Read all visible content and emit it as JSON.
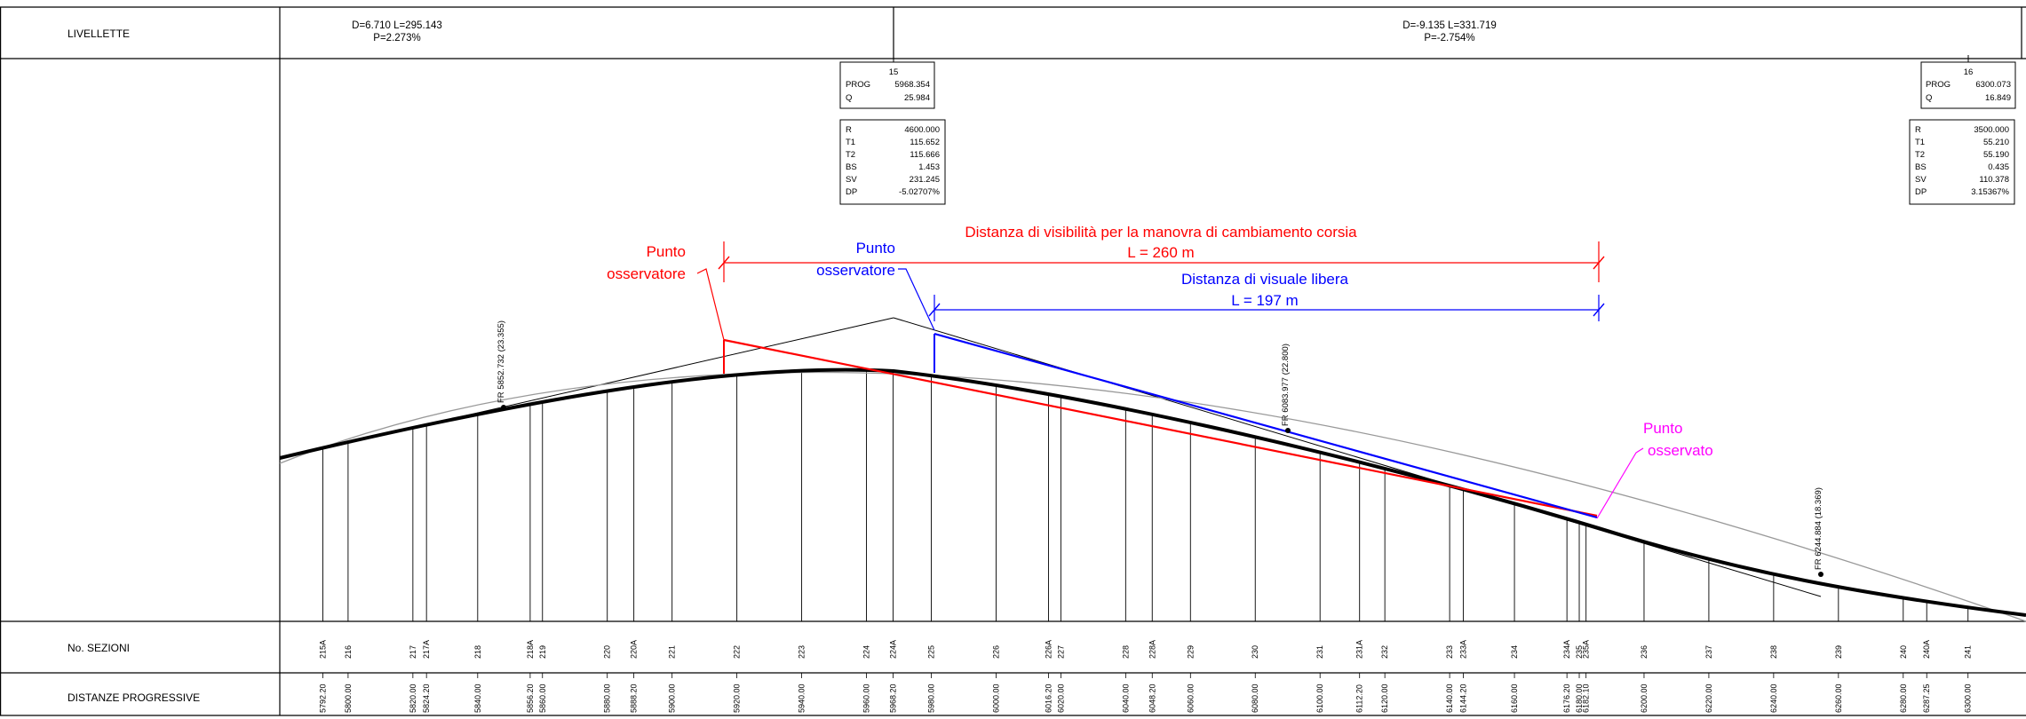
{
  "rows": {
    "livellette": "LIVELLETTE",
    "sezioni": "No. SEZIONI",
    "distanze": "DISTANZE PROGRESSIVE"
  },
  "grades": [
    {
      "line1": "D=6.710 L=295.143",
      "line2": "P=2.273%"
    },
    {
      "line1": "D=-9.135 L=331.719",
      "line2": "P=-2.754%"
    }
  ],
  "vertices": [
    {
      "num": "15",
      "prog_label": "PROG",
      "prog": "5968.354",
      "q_label": "Q",
      "q": "25.984",
      "params": [
        {
          "k": "R",
          "v": "4600.000"
        },
        {
          "k": "T1",
          "v": "115.652"
        },
        {
          "k": "T2",
          "v": "115.666"
        },
        {
          "k": "BS",
          "v": "1.453"
        },
        {
          "k": "SV",
          "v": "231.245"
        },
        {
          "k": "DP",
          "v": "-5.02707%"
        }
      ]
    },
    {
      "num": "16",
      "prog_label": "PROG",
      "prog": "6300.073",
      "q_label": "Q",
      "q": "16.849",
      "params": [
        {
          "k": "R",
          "v": "3500.000"
        },
        {
          "k": "T1",
          "v": "55.210"
        },
        {
          "k": "T2",
          "v": "55.190"
        },
        {
          "k": "BS",
          "v": "0.435"
        },
        {
          "k": "SV",
          "v": "110.378"
        },
        {
          "k": "DP",
          "v": "3.15367%"
        }
      ]
    }
  ],
  "annotations": {
    "red_observer": [
      "Punto",
      "osservatore"
    ],
    "blue_observer": [
      "Punto",
      "osservatore"
    ],
    "target": [
      "Punto",
      "osservato"
    ],
    "sight_distance_title": "Distanza di visibilità per la manovra di cambiamento corsia",
    "sight_distance_value": "L = 260 m",
    "free_view_title": "Distanza di visuale libera",
    "free_view_value": "L = 197 m"
  },
  "colors": {
    "red": "#ff0000",
    "blue": "#0000ff",
    "magenta": "#ff00ff"
  },
  "fr_labels": [
    {
      "text": "FR  5852.732  (23.355)"
    },
    {
      "text": "FR  6083.977  (22.800)"
    },
    {
      "text": "FR  6244.884  (18.369)"
    }
  ],
  "sections": [
    {
      "n": "215A",
      "d": "5792.20"
    },
    {
      "n": "216",
      "d": "5800.00"
    },
    {
      "n": "217",
      "d": "5820.00"
    },
    {
      "n": "217A",
      "d": "5824.20"
    },
    {
      "n": "218",
      "d": "5840.00"
    },
    {
      "n": "218A",
      "d": "5856.20"
    },
    {
      "n": "219",
      "d": "5860.00"
    },
    {
      "n": "220",
      "d": "5880.00"
    },
    {
      "n": "220A",
      "d": "5888.20"
    },
    {
      "n": "221",
      "d": "5900.00"
    },
    {
      "n": "222",
      "d": "5920.00"
    },
    {
      "n": "223",
      "d": "5940.00"
    },
    {
      "n": "224",
      "d": "5960.00"
    },
    {
      "n": "224A",
      "d": "5968.20"
    },
    {
      "n": "225",
      "d": "5980.00"
    },
    {
      "n": "226",
      "d": "6000.00"
    },
    {
      "n": "226A",
      "d": "6016.20"
    },
    {
      "n": "227",
      "d": "6020.00"
    },
    {
      "n": "228",
      "d": "6040.00"
    },
    {
      "n": "228A",
      "d": "6048.20"
    },
    {
      "n": "229",
      "d": "6060.00"
    },
    {
      "n": "230",
      "d": "6080.00"
    },
    {
      "n": "231",
      "d": "6100.00"
    },
    {
      "n": "231A",
      "d": "6112.20"
    },
    {
      "n": "232",
      "d": "6120.00"
    },
    {
      "n": "233",
      "d": "6140.00"
    },
    {
      "n": "233A",
      "d": "6144.20"
    },
    {
      "n": "234",
      "d": "6160.00"
    },
    {
      "n": "234A",
      "d": "6176.20"
    },
    {
      "n": "235",
      "d": "6180.00"
    },
    {
      "n": "235A",
      "d": "6182.10"
    },
    {
      "n": "236",
      "d": "6200.00"
    },
    {
      "n": "237",
      "d": "6220.00"
    },
    {
      "n": "238",
      "d": "6240.00"
    },
    {
      "n": "239",
      "d": "6260.00"
    },
    {
      "n": "240",
      "d": "6280.00"
    },
    {
      "n": "240A",
      "d": "6287.25"
    },
    {
      "n": "241",
      "d": "6300.00"
    }
  ]
}
